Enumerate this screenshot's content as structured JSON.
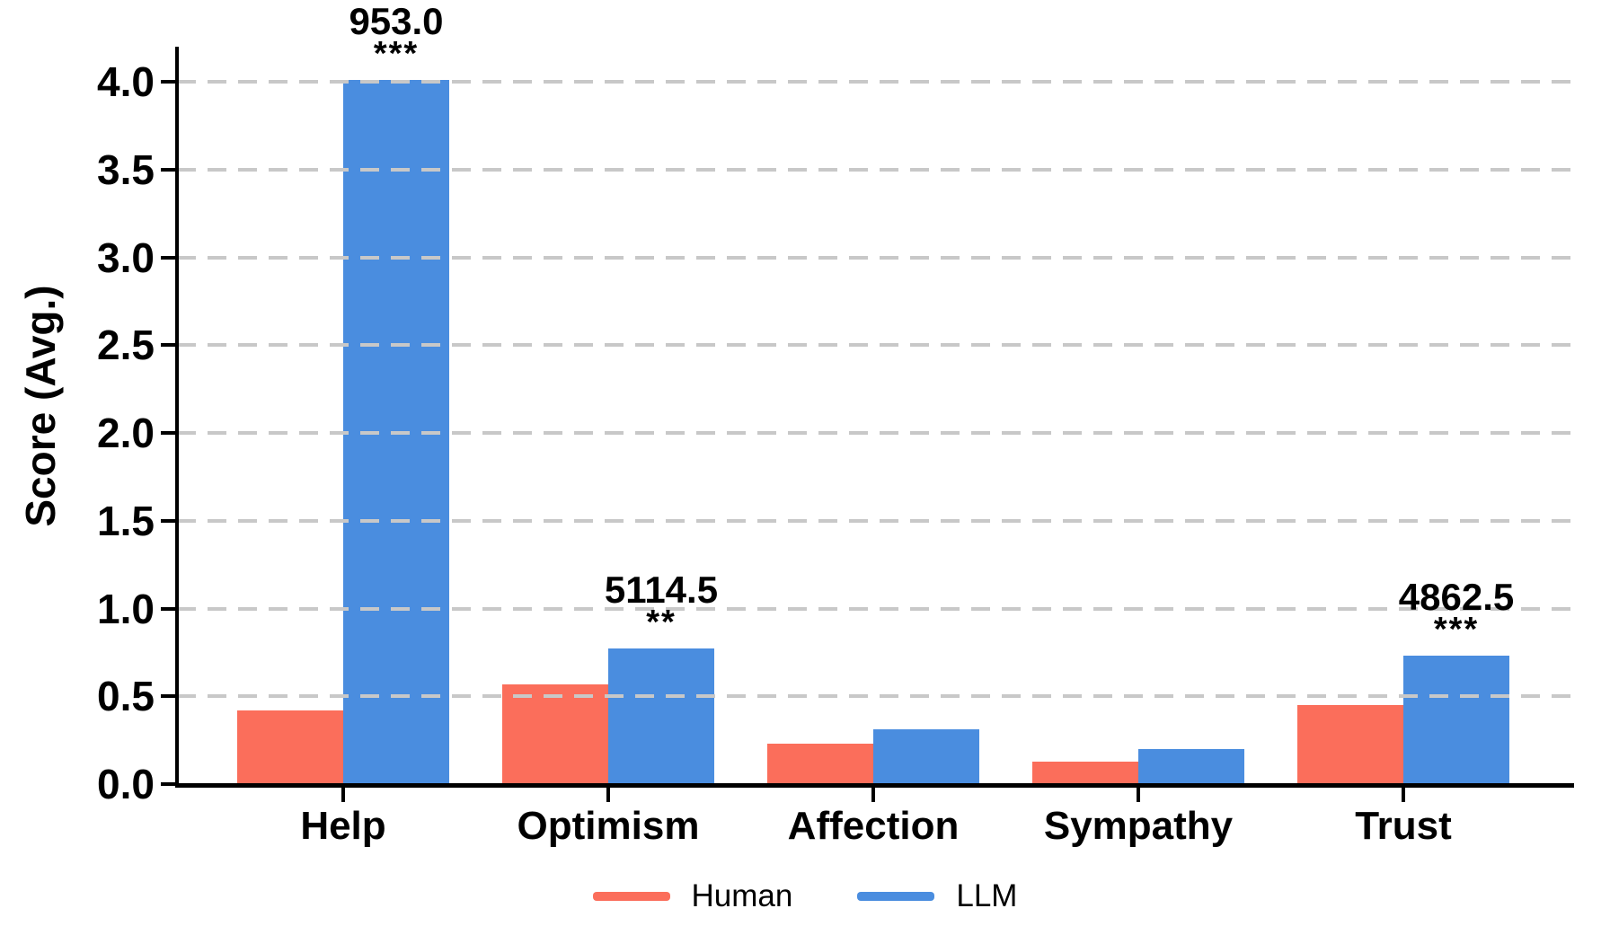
{
  "chart_data": {
    "type": "bar",
    "title": "",
    "ylabel": "Score (Avg.)",
    "xlabel": "",
    "categories": [
      "Help",
      "Optimism",
      "Affection",
      "Sympathy",
      "Trust"
    ],
    "series": [
      {
        "name": "Human",
        "color": "#FB6E5B",
        "values": [
          0.42,
          0.57,
          0.23,
          0.13,
          0.45
        ]
      },
      {
        "name": "LLM",
        "color": "#4A8DDF",
        "values": [
          4.01,
          0.77,
          0.31,
          0.2,
          0.73
        ]
      }
    ],
    "annotations": [
      {
        "category_index": 0,
        "category": "Help",
        "stat": "953.0",
        "stars": "***"
      },
      {
        "category_index": 1,
        "category": "Optimism",
        "stat": "5114.5",
        "stars": "**"
      },
      {
        "category_index": 4,
        "category": "Trust",
        "stat": "4862.5",
        "stars": "***"
      }
    ],
    "ytick_labels": [
      "0.0",
      "0.5",
      "1.0",
      "1.5",
      "2.0",
      "2.5",
      "3.0",
      "3.5",
      "4.0"
    ],
    "ylim": [
      0,
      4.2
    ],
    "grid": "horizontal dashed lines every 0.5, drawn above bars",
    "legend_position": "bottom center",
    "colors": {
      "grid": "#c8c8c8",
      "axis": "#000000",
      "background": "#ffffff"
    }
  },
  "legend": {
    "entries": [
      {
        "label": "Human",
        "color": "#FB6E5B"
      },
      {
        "label": "LLM",
        "color": "#4A8DDF"
      }
    ]
  }
}
